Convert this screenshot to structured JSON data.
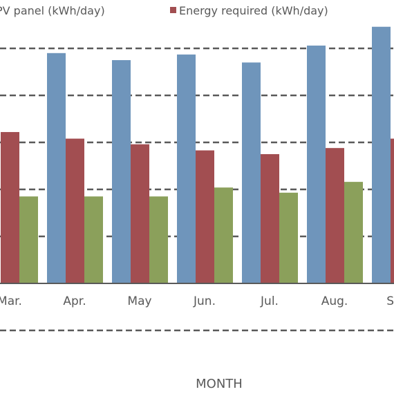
{
  "chart_data": {
    "type": "bar",
    "categories": [
      "Mar.",
      "Apr.",
      "May",
      "Jun.",
      "Jul.",
      "Aug.",
      "Sep."
    ],
    "series": [
      {
        "name": "PV panel (kWh/day)",
        "color": "#6f95bb",
        "values": [
          null,
          4.9,
          4.75,
          4.87,
          4.7,
          5.06,
          5.46
        ]
      },
      {
        "name": "Energy required (kWh/day)",
        "color": "#a24e51",
        "values": [
          3.22,
          3.08,
          2.96,
          2.83,
          2.75,
          2.88,
          3.08
        ]
      },
      {
        "name": "",
        "color": "#8ba05b",
        "values": [
          1.85,
          1.85,
          1.85,
          2.04,
          1.93,
          2.16,
          null
        ]
      }
    ],
    "xlabel": "MONTH",
    "ylim": [
      -1,
      6
    ],
    "gridlines": [
      -1,
      0,
      1,
      2,
      3,
      4,
      5
    ],
    "grid": "dashed horizontal",
    "legend_position": "top"
  }
}
